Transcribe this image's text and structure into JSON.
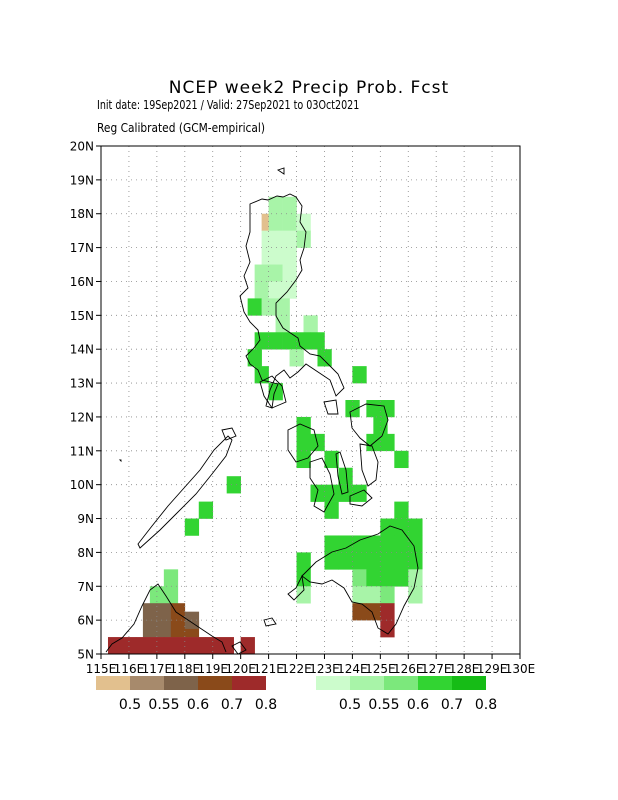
{
  "title": "NCEP week2 Precip Prob. Fcst",
  "subtitle": "Init date: 19Sep2021 / Valid: 27Sep2021 to 03Oct2021",
  "method": "Reg Calibrated (GCM-empirical)",
  "map": {
    "lon_range": [
      115,
      130
    ],
    "lat_range": [
      5,
      20
    ],
    "lat_ticks": [
      "5N",
      "6N",
      "7N",
      "8N",
      "9N",
      "10N",
      "11N",
      "12N",
      "13N",
      "14N",
      "15N",
      "16N",
      "17N",
      "18N",
      "19N",
      "20N"
    ],
    "lon_ticks": [
      "115E",
      "116E",
      "117E",
      "118E",
      "119E",
      "120E",
      "121E",
      "122E",
      "123E",
      "124E",
      "125E",
      "126E",
      "127E",
      "128E",
      "129E",
      "130E"
    ],
    "grid": true
  },
  "legend": {
    "dry": {
      "colors": [
        "#e2c08e",
        "#a78a6c",
        "#7e634a",
        "#8a4a1a",
        "#9e2a2a"
      ],
      "labels": [
        "0.5",
        "0.55",
        "0.6",
        "0.7",
        "0.8"
      ]
    },
    "wet": {
      "colors": [
        "#ccfccc",
        "#a8f4a8",
        "#7ce87c",
        "#32d432",
        "#16bc16"
      ],
      "labels": [
        "0.5",
        "0.55",
        "0.6",
        "0.7",
        "0.8"
      ]
    }
  },
  "chart_data": {
    "type": "heatmap",
    "cell_size_deg": 0.5,
    "cells_note": "lon, lat of SW corner; c = category (w1..w5 wet, d1..d5 dry)",
    "cells": [
      [
        120.75,
        17.5,
        "d1"
      ],
      [
        120.75,
        17.0,
        "w1"
      ],
      [
        121.0,
        18.0,
        "w2"
      ],
      [
        121.5,
        18.0,
        "w2"
      ],
      [
        121.0,
        17.5,
        "w2"
      ],
      [
        121.5,
        17.5,
        "w2"
      ],
      [
        122.0,
        17.5,
        "w1"
      ],
      [
        120.75,
        16.5,
        "w1"
      ],
      [
        121.0,
        17.0,
        "w1"
      ],
      [
        121.5,
        17.0,
        "w1"
      ],
      [
        122.0,
        17.0,
        "w2"
      ],
      [
        121.0,
        16.5,
        "w1"
      ],
      [
        121.5,
        16.5,
        "w1"
      ],
      [
        120.5,
        16.0,
        "w2"
      ],
      [
        121.0,
        16.0,
        "w2"
      ],
      [
        121.5,
        16.0,
        "w1"
      ],
      [
        120.5,
        15.5,
        "w2"
      ],
      [
        121.0,
        15.5,
        "w1"
      ],
      [
        121.5,
        15.5,
        "w1"
      ],
      [
        120.25,
        15.0,
        "w4"
      ],
      [
        120.75,
        15.0,
        "w2"
      ],
      [
        121.25,
        15.0,
        "w2"
      ],
      [
        121.25,
        14.5,
        "w2"
      ],
      [
        122.25,
        14.5,
        "w2"
      ],
      [
        120.5,
        14.0,
        "w4"
      ],
      [
        121.0,
        14.0,
        "w4"
      ],
      [
        121.5,
        14.0,
        "w4"
      ],
      [
        122.0,
        14.0,
        "w4"
      ],
      [
        122.5,
        14.0,
        "w4"
      ],
      [
        122.75,
        13.5,
        "w4"
      ],
      [
        120.25,
        13.5,
        "w4"
      ],
      [
        121.75,
        13.5,
        "w2"
      ],
      [
        124.0,
        13.0,
        "w4"
      ],
      [
        120.5,
        13.0,
        "w4"
      ],
      [
        121.0,
        12.5,
        "w4"
      ],
      [
        123.75,
        12.0,
        "w4"
      ],
      [
        124.5,
        12.0,
        "w4"
      ],
      [
        125.0,
        12.0,
        "w4"
      ],
      [
        124.75,
        11.5,
        "w4"
      ],
      [
        122.0,
        11.5,
        "w4"
      ],
      [
        122.0,
        11.0,
        "w4"
      ],
      [
        122.5,
        11.0,
        "w4"
      ],
      [
        124.5,
        11.0,
        "w4"
      ],
      [
        125.0,
        11.0,
        "w4"
      ],
      [
        122.0,
        10.5,
        "w4"
      ],
      [
        123.0,
        10.5,
        "w4"
      ],
      [
        125.5,
        10.5,
        "w4"
      ],
      [
        123.5,
        10.0,
        "w4"
      ],
      [
        119.5,
        9.75,
        "w4"
      ],
      [
        122.5,
        9.5,
        "w4"
      ],
      [
        123.0,
        9.5,
        "w4"
      ],
      [
        123.5,
        9.5,
        "w4"
      ],
      [
        124.0,
        9.5,
        "w4"
      ],
      [
        123.0,
        9.0,
        "w4"
      ],
      [
        125.5,
        9.0,
        "w4"
      ],
      [
        118.5,
        9.0,
        "w4"
      ],
      [
        118.0,
        8.5,
        "w4"
      ],
      [
        125.0,
        8.5,
        "w4"
      ],
      [
        125.5,
        8.5,
        "w4"
      ],
      [
        126.0,
        8.5,
        "w4"
      ],
      [
        123.0,
        8.0,
        "w4"
      ],
      [
        123.5,
        8.0,
        "w4"
      ],
      [
        124.0,
        8.0,
        "w4"
      ],
      [
        124.5,
        8.0,
        "w4"
      ],
      [
        125.0,
        8.0,
        "w4"
      ],
      [
        125.5,
        8.0,
        "w4"
      ],
      [
        126.0,
        8.0,
        "w4"
      ],
      [
        123.0,
        7.5,
        "w4"
      ],
      [
        123.5,
        7.5,
        "w4"
      ],
      [
        124.0,
        7.5,
        "w4"
      ],
      [
        124.5,
        7.5,
        "w4"
      ],
      [
        125.0,
        7.5,
        "w4"
      ],
      [
        125.5,
        7.5,
        "w4"
      ],
      [
        126.0,
        7.5,
        "w4"
      ],
      [
        122.0,
        7.5,
        "w4"
      ],
      [
        122.0,
        7.0,
        "w4"
      ],
      [
        122.0,
        6.5,
        "w2"
      ],
      [
        124.0,
        7.0,
        "w3"
      ],
      [
        124.5,
        7.0,
        "w4"
      ],
      [
        125.0,
        7.0,
        "w4"
      ],
      [
        125.5,
        7.0,
        "w4"
      ],
      [
        126.0,
        7.0,
        "w2"
      ],
      [
        117.25,
        7.0,
        "w3"
      ],
      [
        116.75,
        6.5,
        "w3"
      ],
      [
        117.25,
        6.5,
        "w3"
      ],
      [
        124.0,
        6.5,
        "w2"
      ],
      [
        124.5,
        6.5,
        "w2"
      ],
      [
        125.0,
        6.5,
        "w3"
      ],
      [
        126.0,
        6.5,
        "w2"
      ],
      [
        116.5,
        6.0,
        "d3"
      ],
      [
        117.0,
        6.0,
        "d3"
      ],
      [
        117.5,
        6.0,
        "d4"
      ],
      [
        116.5,
        5.5,
        "d3"
      ],
      [
        117.0,
        5.5,
        "d3"
      ],
      [
        117.5,
        5.5,
        "d4"
      ],
      [
        118.0,
        5.5,
        "d4"
      ],
      [
        118.0,
        5.75,
        "d3"
      ],
      [
        124.0,
        6.0,
        "d4"
      ],
      [
        124.5,
        6.0,
        "d4"
      ],
      [
        125.0,
        6.0,
        "d5"
      ],
      [
        125.0,
        5.5,
        "d5"
      ],
      [
        115.25,
        5.0,
        "d5"
      ],
      [
        115.75,
        5.0,
        "d5"
      ],
      [
        116.25,
        5.0,
        "d5"
      ],
      [
        116.75,
        5.0,
        "d5"
      ],
      [
        117.25,
        5.0,
        "d5"
      ],
      [
        117.75,
        5.0,
        "d5"
      ],
      [
        118.25,
        5.0,
        "d5"
      ],
      [
        118.75,
        5.0,
        "d5"
      ],
      [
        119.25,
        5.0,
        "d5"
      ],
      [
        120.0,
        5.0,
        "d5"
      ]
    ]
  }
}
